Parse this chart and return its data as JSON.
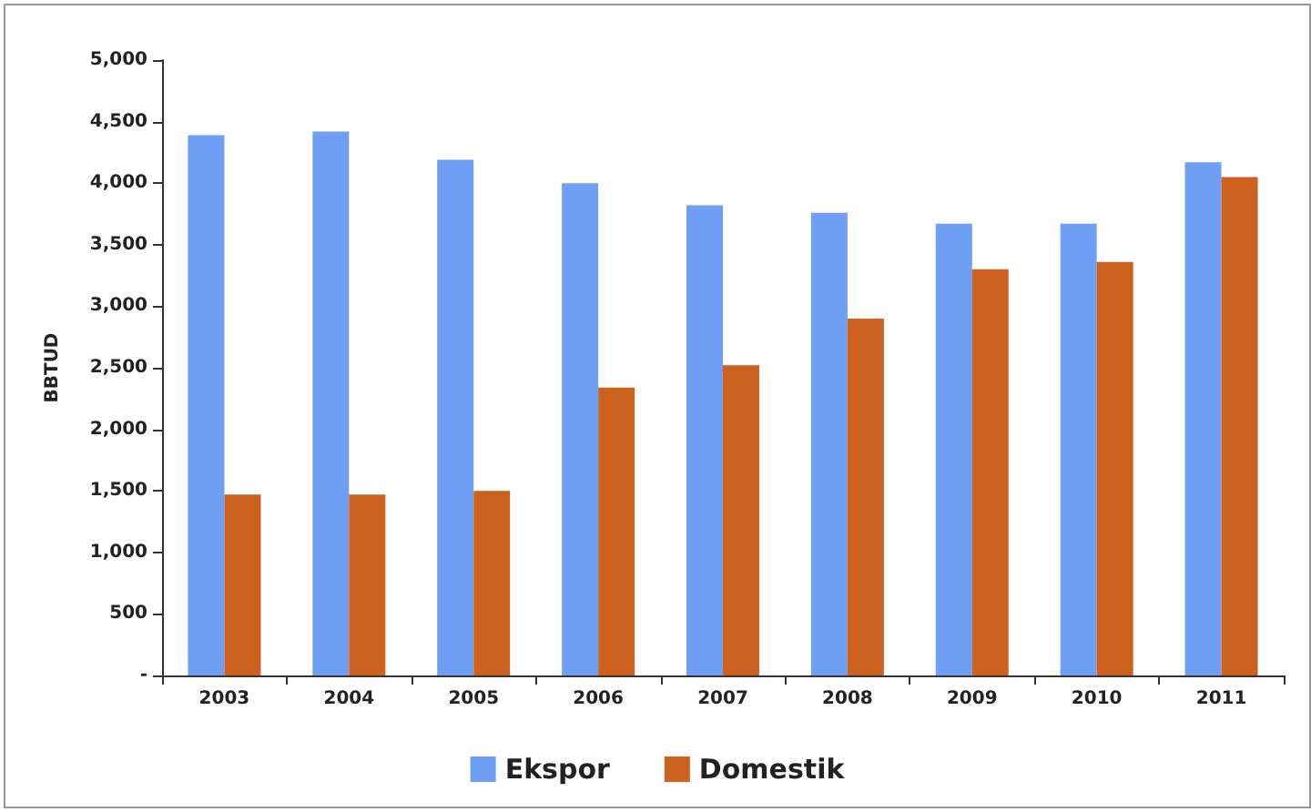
{
  "chart_data": {
    "type": "bar",
    "ylabel": "BBTUD",
    "categories": [
      "2003",
      "2004",
      "2005",
      "2006",
      "2007",
      "2008",
      "2009",
      "2010",
      "2011"
    ],
    "series": [
      {
        "name": "Ekspor",
        "color": "#6f9ef5",
        "values": [
          4390,
          4420,
          4190,
          4000,
          3820,
          3760,
          3670,
          3670,
          4170
        ]
      },
      {
        "name": "Domestik",
        "color": "#cc6120",
        "values": [
          1470,
          1470,
          1500,
          2340,
          2520,
          2900,
          3300,
          3360,
          4050
        ]
      }
    ],
    "ylim": [
      0,
      5000
    ],
    "yticks": [
      {
        "value": 0,
        "label": "-"
      },
      {
        "value": 500,
        "label": "500"
      },
      {
        "value": 1000,
        "label": "1,000"
      },
      {
        "value": 1500,
        "label": "1,500"
      },
      {
        "value": 2000,
        "label": "2,000"
      },
      {
        "value": 2500,
        "label": "2,500"
      },
      {
        "value": 3000,
        "label": "3,000"
      },
      {
        "value": 3500,
        "label": "3,500"
      },
      {
        "value": 4000,
        "label": "4,000"
      },
      {
        "value": 4500,
        "label": "4,500"
      },
      {
        "value": 5000,
        "label": "5,000"
      }
    ],
    "grid": false,
    "legend": "bottom"
  }
}
